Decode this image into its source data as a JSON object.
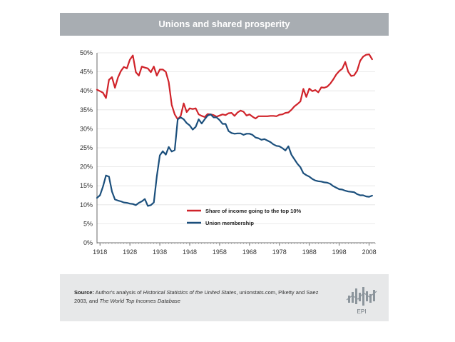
{
  "title": "Unions and shared prosperity",
  "chart_data": {
    "type": "line",
    "title": "Unions and shared prosperity",
    "xlabel": "",
    "ylabel": "",
    "xlim": [
      1917,
      2010
    ],
    "ylim": [
      0,
      50
    ],
    "x_ticks": [
      1918,
      1928,
      1938,
      1948,
      1958,
      1968,
      1978,
      1988,
      1998,
      2008
    ],
    "y_ticks": [
      0,
      5,
      10,
      15,
      20,
      25,
      30,
      35,
      40,
      45,
      50
    ],
    "y_tick_labels": [
      "0%",
      "5%",
      "10%",
      "15%",
      "20%",
      "25%",
      "30%",
      "35%",
      "40%",
      "45%",
      "50%"
    ],
    "legend_position": "center-right",
    "series": [
      {
        "name": "Share of income going to the top 10%",
        "color": "#d0232a",
        "x": [
          1917,
          1918,
          1919,
          1920,
          1921,
          1922,
          1923,
          1924,
          1925,
          1926,
          1927,
          1928,
          1929,
          1930,
          1931,
          1932,
          1933,
          1934,
          1935,
          1936,
          1937,
          1938,
          1939,
          1940,
          1941,
          1942,
          1943,
          1944,
          1945,
          1946,
          1947,
          1948,
          1949,
          1950,
          1951,
          1952,
          1953,
          1954,
          1955,
          1956,
          1957,
          1958,
          1959,
          1960,
          1961,
          1962,
          1963,
          1964,
          1965,
          1966,
          1967,
          1968,
          1969,
          1970,
          1971,
          1972,
          1973,
          1974,
          1975,
          1976,
          1977,
          1978,
          1979,
          1980,
          1981,
          1982,
          1983,
          1984,
          1985,
          1986,
          1987,
          1988,
          1989,
          1990,
          1991,
          1992,
          1993,
          1994,
          1995,
          1996,
          1997,
          1998,
          1999,
          2000,
          2001,
          2002,
          2003,
          2004,
          2005,
          2006,
          2007,
          2008,
          2009
        ],
        "values": [
          40.3,
          39.9,
          39.5,
          38.1,
          42.9,
          43.6,
          40.8,
          43.5,
          45.2,
          46.3,
          45.9,
          48.2,
          49.3,
          44.9,
          44.0,
          46.4,
          46.1,
          45.9,
          44.9,
          46.4,
          44.0,
          45.6,
          45.6,
          45.0,
          42.3,
          36.3,
          33.8,
          32.5,
          33.4,
          36.7,
          34.4,
          35.4,
          35.2,
          35.4,
          33.8,
          33.4,
          33.1,
          33.9,
          33.8,
          33.6,
          33.2,
          33.5,
          33.8,
          33.6,
          34.1,
          34.2,
          33.4,
          34.3,
          34.8,
          34.5,
          33.5,
          33.8,
          33.2,
          32.7,
          33.3,
          33.3,
          33.3,
          33.3,
          33.4,
          33.4,
          33.3,
          33.7,
          33.8,
          34.2,
          34.3,
          35.0,
          35.9,
          36.5,
          37.2,
          40.5,
          38.4,
          40.6,
          39.9,
          40.2,
          39.6,
          40.9,
          40.8,
          41.1,
          41.9,
          43.0,
          44.3,
          45.2,
          45.8,
          47.6,
          45.0,
          43.9,
          44.1,
          45.3,
          47.9,
          49.0,
          49.5,
          49.6,
          48.3
        ]
      },
      {
        "name": "Union membership",
        "color": "#1b4f7c",
        "x": [
          1917,
          1918,
          1919,
          1920,
          1921,
          1922,
          1923,
          1924,
          1925,
          1926,
          1927,
          1928,
          1929,
          1930,
          1931,
          1932,
          1933,
          1934,
          1935,
          1936,
          1937,
          1938,
          1939,
          1940,
          1941,
          1942,
          1943,
          1944,
          1945,
          1946,
          1947,
          1948,
          1949,
          1950,
          1951,
          1952,
          1953,
          1954,
          1955,
          1956,
          1957,
          1958,
          1959,
          1960,
          1961,
          1962,
          1963,
          1964,
          1965,
          1966,
          1967,
          1968,
          1969,
          1970,
          1971,
          1972,
          1973,
          1974,
          1975,
          1976,
          1977,
          1978,
          1979,
          1980,
          1981,
          1982,
          1983,
          1984,
          1985,
          1986,
          1987,
          1988,
          1989,
          1990,
          1991,
          1992,
          1993,
          1994,
          1995,
          1996,
          1997,
          1998,
          1999,
          2000,
          2001,
          2002,
          2003,
          2004,
          2005,
          2006,
          2007,
          2008,
          2009
        ],
        "values": [
          11.8,
          12.5,
          14.8,
          17.7,
          17.4,
          13.5,
          11.4,
          11.1,
          10.9,
          10.6,
          10.5,
          10.3,
          10.2,
          9.9,
          10.5,
          10.9,
          11.5,
          9.7,
          9.9,
          10.6,
          17.5,
          23.0,
          24.1,
          23.2,
          25.2,
          24.0,
          24.4,
          32.5,
          33.0,
          32.5,
          31.5,
          30.9,
          29.8,
          30.5,
          32.5,
          31.4,
          32.5,
          33.5,
          33.8,
          33.0,
          33.0,
          32.3,
          31.3,
          31.3,
          29.4,
          28.9,
          28.7,
          28.8,
          28.8,
          28.4,
          28.7,
          28.7,
          28.4,
          27.7,
          27.5,
          27.1,
          27.3,
          26.9,
          26.5,
          25.9,
          25.5,
          25.4,
          24.9,
          24.3,
          25.4,
          23.2,
          22.0,
          20.8,
          19.9,
          18.3,
          17.8,
          17.4,
          16.8,
          16.4,
          16.2,
          16.1,
          15.9,
          15.8,
          15.5,
          14.9,
          14.5,
          14.1,
          14.0,
          13.7,
          13.5,
          13.4,
          13.3,
          12.8,
          12.5,
          12.5,
          12.2,
          12.1,
          12.4
        ]
      }
    ]
  },
  "source": {
    "label": "Source:",
    "text_1": " Author's analysis of ",
    "italic_1": "Historical Statistics of the United States",
    "text_2": ", unionstats.com, Piketty and Saez 2003, and ",
    "italic_2": "The World Top Incomes Database"
  },
  "logo": {
    "text": "EPI"
  }
}
